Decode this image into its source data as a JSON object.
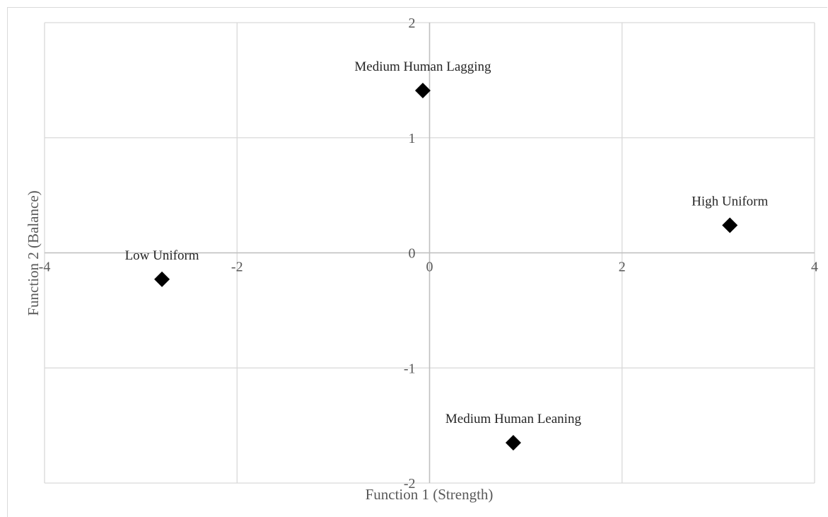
{
  "chart_data": {
    "type": "scatter",
    "title": "",
    "xlabel": "Function 1 (Strength)",
    "ylabel": "Function 2 (Balance)",
    "xlim": [
      -4,
      4
    ],
    "ylim": [
      -2,
      2
    ],
    "x_ticks": [
      "-4",
      "-2",
      "0",
      "2",
      "4"
    ],
    "y_ticks": [
      "-2",
      "-1",
      "0",
      "1",
      "2"
    ],
    "grid": true,
    "marker": "diamond",
    "marker_color": "#000000",
    "points": [
      {
        "label": "Medium Human Lagging",
        "x": -0.07,
        "y": 1.41
      },
      {
        "label": "High Uniform",
        "x": 3.12,
        "y": 0.24
      },
      {
        "label": "Low Uniform",
        "x": -2.78,
        "y": -0.23
      },
      {
        "label": "Medium Human Leaning",
        "x": 0.87,
        "y": -1.65
      }
    ]
  }
}
